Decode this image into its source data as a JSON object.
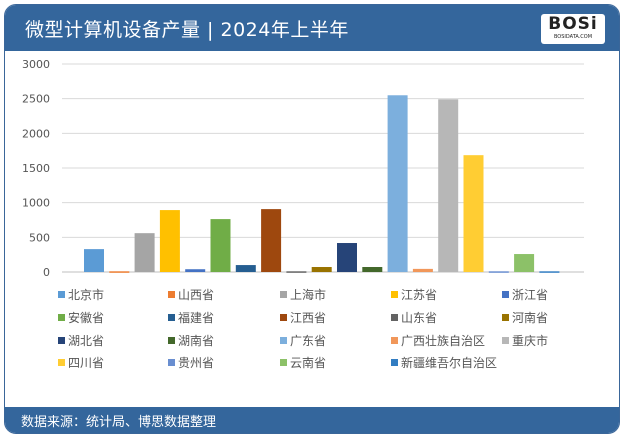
{
  "header": {
    "title": "微型计算机设备产量 | 2024年上半年",
    "logo_text": "BOSi",
    "logo_sub": "BOSIDATA.COM"
  },
  "footer": {
    "source": "数据来源：统计局、博思数据整理"
  },
  "chart_data": {
    "type": "bar",
    "title": "微型计算机设备产量 | 2024年上半年",
    "xlabel": "",
    "ylabel": "",
    "ylim": [
      0,
      3000
    ],
    "yticks": [
      0,
      500,
      1000,
      1500,
      2000,
      2500,
      3000
    ],
    "grid": true,
    "legend_position": "bottom",
    "series": [
      {
        "name": "北京市",
        "value": 330,
        "color": "#5b9bd5"
      },
      {
        "name": "山西省",
        "value": 10,
        "color": "#ed7d31"
      },
      {
        "name": "上海市",
        "value": 560,
        "color": "#a5a5a5"
      },
      {
        "name": "江苏省",
        "value": 893,
        "color": "#ffc000"
      },
      {
        "name": "浙江省",
        "value": 40,
        "color": "#4472c4"
      },
      {
        "name": "安徽省",
        "value": 763,
        "color": "#70ad47"
      },
      {
        "name": "福建省",
        "value": 100,
        "color": "#255e91"
      },
      {
        "name": "江西省",
        "value": 907,
        "color": "#9e480e"
      },
      {
        "name": "山东省",
        "value": 10,
        "color": "#636363"
      },
      {
        "name": "河南省",
        "value": 72,
        "color": "#997300"
      },
      {
        "name": "湖北省",
        "value": 418,
        "color": "#264478"
      },
      {
        "name": "湖南省",
        "value": 72,
        "color": "#43682b"
      },
      {
        "name": "广东省",
        "value": 2549,
        "color": "#7cafdd"
      },
      {
        "name": "广西壮族自治区",
        "value": 45,
        "color": "#f1975a"
      },
      {
        "name": "重庆市",
        "value": 2491,
        "color": "#b7b7b7"
      },
      {
        "name": "四川省",
        "value": 1685,
        "color": "#ffcd33"
      },
      {
        "name": "贵州省",
        "value": 10,
        "color": "#698ed0"
      },
      {
        "name": "云南省",
        "value": 259,
        "color": "#8cc168"
      },
      {
        "name": "新疆维吾尔自治区",
        "value": 10,
        "color": "#327dc2"
      }
    ]
  }
}
